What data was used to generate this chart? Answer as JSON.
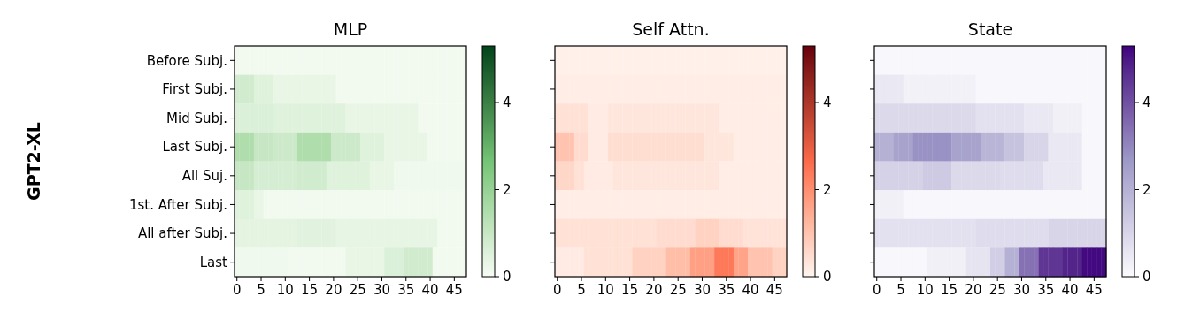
{
  "chart_data": [
    {
      "type": "heatmap",
      "title": "MLP",
      "ylabel": "GPT2-XL",
      "colors": [
        "#f7fcf5",
        "#74c476",
        "#00441b"
      ],
      "clim": [
        0,
        5.3
      ],
      "cticks": [
        0,
        2,
        4
      ],
      "categories": [
        "0",
        null,
        null,
        null,
        null,
        "5",
        null,
        null,
        null,
        null,
        "10",
        null,
        null,
        null,
        null,
        "15",
        null,
        null,
        null,
        null,
        "20",
        null,
        null,
        null,
        null,
        "25",
        null,
        null,
        null,
        null,
        "30",
        null,
        null,
        null,
        null,
        "35",
        null,
        null,
        null,
        null,
        "40",
        null,
        null,
        null,
        null,
        "45",
        null,
        null
      ],
      "y_categories": [
        "Before Subj.",
        "First Subj.",
        "Mid Subj.",
        "Last Subj.",
        "All Suj.",
        "1st. After Subj.",
        "All after Subj.",
        "Last"
      ],
      "cells": [
        [
          0.1,
          0.1,
          0.1,
          0.1,
          0.1,
          0.1,
          0.1,
          0.1,
          0.1,
          0.1,
          0.1,
          0.1,
          0.1,
          0.1,
          0.1,
          0.1,
          0.1,
          0.1,
          0.1,
          0.1,
          0.1,
          0.1,
          0.1,
          0.1,
          0.1,
          0.1,
          0.1,
          0.1,
          0.1,
          0.1,
          0.1,
          0.1,
          0.1,
          0.1,
          0.1,
          0.1,
          0.1,
          0.1,
          0.1,
          0.1,
          0.1,
          0.1,
          0.1,
          0.1,
          0.1,
          0.1,
          0.1,
          0.1
        ],
        [
          0.8,
          0.8,
          0.8,
          0.8,
          0.5,
          0.5,
          0.5,
          0.5,
          0.3,
          0.3,
          0.3,
          0.3,
          0.3,
          0.3,
          0.3,
          0.3,
          0.3,
          0.3,
          0.3,
          0.3,
          0.3,
          0.1,
          0.1,
          0.1,
          0.1,
          0.1,
          0.1,
          0.1,
          0.1,
          0.1,
          0.1,
          0.1,
          0.1,
          0.1,
          0.1,
          0.1,
          0.1,
          0.1,
          0.1,
          0.1,
          0.1,
          0.1,
          0.1,
          0.1,
          0.1,
          0.1,
          0.1,
          0.1
        ],
        [
          0.6,
          0.6,
          0.6,
          0.6,
          0.6,
          0.6,
          0.6,
          0.6,
          0.5,
          0.5,
          0.5,
          0.5,
          0.5,
          0.5,
          0.5,
          0.5,
          0.5,
          0.5,
          0.5,
          0.5,
          0.5,
          0.5,
          0.5,
          0.3,
          0.3,
          0.3,
          0.3,
          0.3,
          0.3,
          0.3,
          0.3,
          0.3,
          0.3,
          0.3,
          0.3,
          0.3,
          0.3,
          0.3,
          0.1,
          0.1,
          0.1,
          0.1,
          0.1,
          0.1,
          0.1,
          0.1,
          0.1,
          0.1
        ],
        [
          1.5,
          1.5,
          1.5,
          1.5,
          1.0,
          1.0,
          1.0,
          1.0,
          0.9,
          0.9,
          0.9,
          0.9,
          0.9,
          1.5,
          1.5,
          1.5,
          1.5,
          1.5,
          1.5,
          1.5,
          0.9,
          0.9,
          0.9,
          0.9,
          0.9,
          0.9,
          0.5,
          0.5,
          0.5,
          0.5,
          0.5,
          0.3,
          0.3,
          0.3,
          0.3,
          0.3,
          0.3,
          0.3,
          0.3,
          0.3,
          0.1,
          0.1,
          0.1,
          0.1,
          0.1,
          0.1,
          0.1,
          0.1
        ],
        [
          1.0,
          1.0,
          1.0,
          1.0,
          0.7,
          0.7,
          0.7,
          0.7,
          0.7,
          0.7,
          0.7,
          0.7,
          0.7,
          0.8,
          0.8,
          0.8,
          0.8,
          0.8,
          0.8,
          0.5,
          0.5,
          0.5,
          0.5,
          0.5,
          0.5,
          0.5,
          0.5,
          0.5,
          0.3,
          0.3,
          0.3,
          0.3,
          0.3,
          0.15,
          0.15,
          0.15,
          0.15,
          0.15,
          0.15,
          0.15,
          0.15,
          0.15,
          0.15,
          0.15,
          0.15,
          0.15,
          0.15,
          0.15
        ],
        [
          0.5,
          0.5,
          0.5,
          0.5,
          0.3,
          0.3,
          0.1,
          0.1,
          0.1,
          0.1,
          0.1,
          0.1,
          0.1,
          0.1,
          0.1,
          0.1,
          0.1,
          0.1,
          0.1,
          0.1,
          0.1,
          0.1,
          0.1,
          0.1,
          0.1,
          0.1,
          0.1,
          0.1,
          0.1,
          0.1,
          0.1,
          0.1,
          0.1,
          0.1,
          0.1,
          0.1,
          0.1,
          0.1,
          0.1,
          0.1,
          0.1,
          0.1,
          0.1,
          0.1,
          0.1,
          0.1,
          0.1,
          0.1
        ],
        [
          0.4,
          0.4,
          0.4,
          0.4,
          0.4,
          0.4,
          0.4,
          0.4,
          0.4,
          0.4,
          0.4,
          0.4,
          0.4,
          0.45,
          0.45,
          0.45,
          0.45,
          0.45,
          0.45,
          0.45,
          0.45,
          0.35,
          0.35,
          0.35,
          0.35,
          0.35,
          0.35,
          0.35,
          0.35,
          0.35,
          0.35,
          0.35,
          0.35,
          0.35,
          0.35,
          0.35,
          0.35,
          0.35,
          0.35,
          0.35,
          0.35,
          0.35,
          0.1,
          0.1,
          0.1,
          0.1,
          0.1,
          0.1
        ],
        [
          0.15,
          0.15,
          0.15,
          0.15,
          0.15,
          0.15,
          0.15,
          0.15,
          0.15,
          0.15,
          0.15,
          0.1,
          0.1,
          0.1,
          0.1,
          0.1,
          0.1,
          0.1,
          0.1,
          0.1,
          0.1,
          0.1,
          0.1,
          0.3,
          0.3,
          0.3,
          0.3,
          0.3,
          0.3,
          0.3,
          0.3,
          0.6,
          0.6,
          0.6,
          0.6,
          0.8,
          0.8,
          0.8,
          0.8,
          0.8,
          0.8,
          0.1,
          0.1,
          0.1,
          0.1,
          0.1,
          0.1,
          0.1
        ]
      ]
    },
    {
      "type": "heatmap",
      "title": "Self Attn.",
      "tick_labels": "x",
      "y_categories": [
        null,
        null,
        null,
        null,
        null,
        null,
        null,
        null
      ],
      "colors": [
        "#fff5f0",
        "#fb6a4a",
        "#67000d"
      ],
      "clim": [
        0,
        5.3
      ],
      "cticks": [
        0,
        2,
        4
      ],
      "categories": [
        "0",
        null,
        null,
        null,
        null,
        "5",
        null,
        null,
        null,
        null,
        "10",
        null,
        null,
        null,
        null,
        "15",
        null,
        null,
        null,
        null,
        "20",
        null,
        null,
        null,
        null,
        "25",
        null,
        null,
        null,
        null,
        "30",
        null,
        null,
        null,
        null,
        "35",
        null,
        null,
        null,
        null,
        "40",
        null,
        null,
        null,
        null,
        "45",
        null,
        null
      ],
      "cells": [
        [
          0.1,
          0.1,
          0.1,
          0.1,
          0.1,
          0.1,
          0.1,
          0.1,
          0.1,
          0.1,
          0.1,
          0.1,
          0.1,
          0.1,
          0.1,
          0.1,
          0.1,
          0.1,
          0.1,
          0.1,
          0.1,
          0.1,
          0.1,
          0.1,
          0.1,
          0.1,
          0.1,
          0.1,
          0.1,
          0.1,
          0.1,
          0.1,
          0.1,
          0.1,
          0.1,
          0.1,
          0.1,
          0.1,
          0.1,
          0.1,
          0.1,
          0.1,
          0.1,
          0.1,
          0.1,
          0.1,
          0.1,
          0.1
        ],
        [
          0.15,
          0.15,
          0.15,
          0.15,
          0.15,
          0.15,
          0.15,
          0.15,
          0.15,
          0.15,
          0.15,
          0.15,
          0.15,
          0.15,
          0.15,
          0.15,
          0.15,
          0.15,
          0.15,
          0.15,
          0.15,
          0.15,
          0.15,
          0.15,
          0.15,
          0.15,
          0.15,
          0.15,
          0.15,
          0.15,
          0.15,
          0.15,
          0.15,
          0.15,
          0.15,
          0.15,
          0.15,
          0.15,
          0.15,
          0.15,
          0.15,
          0.15,
          0.15,
          0.15,
          0.15,
          0.15,
          0.15,
          0.15
        ],
        [
          0.4,
          0.4,
          0.4,
          0.4,
          0.4,
          0.4,
          0.4,
          0.2,
          0.2,
          0.2,
          0.2,
          0.3,
          0.3,
          0.3,
          0.3,
          0.3,
          0.3,
          0.3,
          0.3,
          0.3,
          0.3,
          0.3,
          0.3,
          0.3,
          0.3,
          0.3,
          0.3,
          0.3,
          0.3,
          0.3,
          0.3,
          0.3,
          0.3,
          0.3,
          0.15,
          0.15,
          0.15,
          0.15,
          0.15,
          0.15,
          0.15,
          0.15,
          0.15,
          0.15,
          0.15,
          0.15,
          0.15,
          0.15
        ],
        [
          1.0,
          1.0,
          1.0,
          1.0,
          0.5,
          0.5,
          0.5,
          0.2,
          0.2,
          0.2,
          0.2,
          0.45,
          0.45,
          0.45,
          0.45,
          0.45,
          0.45,
          0.45,
          0.45,
          0.45,
          0.45,
          0.45,
          0.45,
          0.45,
          0.45,
          0.45,
          0.45,
          0.45,
          0.45,
          0.45,
          0.45,
          0.3,
          0.3,
          0.3,
          0.3,
          0.3,
          0.3,
          0.15,
          0.15,
          0.15,
          0.15,
          0.15,
          0.15,
          0.15,
          0.15,
          0.15,
          0.15,
          0.15
        ],
        [
          0.6,
          0.6,
          0.6,
          0.6,
          0.4,
          0.4,
          0.2,
          0.2,
          0.2,
          0.2,
          0.2,
          0.2,
          0.3,
          0.3,
          0.3,
          0.3,
          0.3,
          0.3,
          0.3,
          0.3,
          0.3,
          0.3,
          0.3,
          0.3,
          0.3,
          0.3,
          0.3,
          0.3,
          0.3,
          0.3,
          0.3,
          0.3,
          0.3,
          0.3,
          0.15,
          0.15,
          0.15,
          0.15,
          0.15,
          0.15,
          0.15,
          0.15,
          0.15,
          0.15,
          0.15,
          0.15,
          0.15,
          0.15
        ],
        [
          0.15,
          0.15,
          0.15,
          0.15,
          0.15,
          0.15,
          0.15,
          0.15,
          0.15,
          0.15,
          0.15,
          0.15,
          0.15,
          0.15,
          0.15,
          0.15,
          0.15,
          0.15,
          0.15,
          0.15,
          0.15,
          0.15,
          0.15,
          0.15,
          0.15,
          0.15,
          0.15,
          0.15,
          0.15,
          0.15,
          0.15,
          0.15,
          0.15,
          0.15,
          0.15,
          0.15,
          0.15,
          0.15,
          0.15,
          0.15,
          0.15,
          0.15,
          0.15,
          0.15,
          0.15,
          0.15,
          0.15,
          0.15
        ],
        [
          0.4,
          0.4,
          0.4,
          0.4,
          0.4,
          0.4,
          0.4,
          0.4,
          0.4,
          0.4,
          0.4,
          0.4,
          0.4,
          0.4,
          0.4,
          0.4,
          0.4,
          0.4,
          0.4,
          0.4,
          0.4,
          0.5,
          0.5,
          0.5,
          0.5,
          0.5,
          0.5,
          0.5,
          0.5,
          0.7,
          0.7,
          0.7,
          0.7,
          0.7,
          0.5,
          0.5,
          0.5,
          0.5,
          0.5,
          0.35,
          0.35,
          0.35,
          0.35,
          0.35,
          0.35,
          0.35,
          0.35,
          0.35
        ],
        [
          0.2,
          0.2,
          0.2,
          0.2,
          0.2,
          0.2,
          0.4,
          0.4,
          0.4,
          0.4,
          0.4,
          0.4,
          0.4,
          0.4,
          0.4,
          0.4,
          0.7,
          0.7,
          0.7,
          0.7,
          0.7,
          0.7,
          0.7,
          1.1,
          1.1,
          1.1,
          1.1,
          1.1,
          1.7,
          1.7,
          1.7,
          1.7,
          1.7,
          2.4,
          2.4,
          2.4,
          2.4,
          1.6,
          1.6,
          1.6,
          1.0,
          1.0,
          1.0,
          1.0,
          1.0,
          0.7,
          0.7,
          0.7
        ]
      ]
    },
    {
      "type": "heatmap",
      "title": "State",
      "tick_labels": "x",
      "y_categories": [
        null,
        null,
        null,
        null,
        null,
        null,
        null,
        null
      ],
      "colors": [
        "#fcfbfd",
        "#9e9ac8",
        "#3f007d"
      ],
      "clim": [
        0,
        5.3
      ],
      "cticks": [
        0,
        2,
        4
      ],
      "categories": [
        "0",
        null,
        null,
        null,
        null,
        "5",
        null,
        null,
        null,
        null,
        "10",
        null,
        null,
        null,
        null,
        "15",
        null,
        null,
        null,
        null,
        "20",
        null,
        null,
        null,
        null,
        "25",
        null,
        null,
        null,
        null,
        "30",
        null,
        null,
        null,
        null,
        "35",
        null,
        null,
        null,
        null,
        "40",
        null,
        null,
        null,
        null,
        "45",
        null,
        null
      ],
      "cells": [
        [
          0.1,
          0.1,
          0.1,
          0.1,
          0.1,
          0.1,
          0.1,
          0.1,
          0.1,
          0.1,
          0.1,
          0.1,
          0.1,
          0.1,
          0.1,
          0.1,
          0.1,
          0.1,
          0.1,
          0.1,
          0.1,
          0.1,
          0.1,
          0.1,
          0.1,
          0.1,
          0.1,
          0.1,
          0.1,
          0.1,
          0.1,
          0.1,
          0.1,
          0.1,
          0.1,
          0.1,
          0.1,
          0.1,
          0.1,
          0.1,
          0.1,
          0.1,
          0.1,
          0.1,
          0.1,
          0.1,
          0.1,
          0.1
        ],
        [
          0.5,
          0.5,
          0.5,
          0.5,
          0.5,
          0.5,
          0.25,
          0.25,
          0.25,
          0.25,
          0.25,
          0.25,
          0.25,
          0.25,
          0.25,
          0.25,
          0.25,
          0.25,
          0.25,
          0.25,
          0.25,
          0.1,
          0.1,
          0.1,
          0.1,
          0.1,
          0.1,
          0.1,
          0.1,
          0.1,
          0.1,
          0.1,
          0.1,
          0.1,
          0.1,
          0.1,
          0.1,
          0.1,
          0.1,
          0.1,
          0.1,
          0.1,
          0.1,
          0.1,
          0.1,
          0.1,
          0.1,
          0.1
        ],
        [
          0.9,
          0.9,
          0.9,
          0.9,
          0.9,
          0.9,
          0.9,
          0.9,
          0.9,
          0.9,
          0.9,
          0.9,
          0.9,
          0.9,
          0.9,
          0.9,
          0.9,
          0.9,
          0.9,
          0.9,
          0.9,
          0.7,
          0.7,
          0.7,
          0.7,
          0.7,
          0.7,
          0.7,
          0.7,
          0.7,
          0.7,
          0.5,
          0.5,
          0.5,
          0.5,
          0.5,
          0.5,
          0.3,
          0.3,
          0.3,
          0.3,
          0.3,
          0.3,
          0.1,
          0.1,
          0.1,
          0.1,
          0.1
        ],
        [
          2.0,
          2.0,
          2.0,
          2.0,
          2.4,
          2.4,
          2.4,
          2.4,
          2.8,
          2.8,
          2.8,
          2.8,
          2.8,
          2.8,
          2.8,
          2.8,
          2.4,
          2.4,
          2.4,
          2.4,
          2.4,
          2.4,
          1.9,
          1.9,
          1.9,
          1.9,
          1.9,
          1.5,
          1.5,
          1.5,
          1.5,
          1.0,
          1.0,
          1.0,
          1.0,
          1.0,
          0.5,
          0.5,
          0.5,
          0.5,
          0.5,
          0.5,
          0.5,
          0.1,
          0.1,
          0.1,
          0.1,
          0.1
        ],
        [
          1.1,
          1.1,
          1.1,
          1.1,
          1.1,
          1.1,
          1.1,
          1.1,
          1.1,
          1.1,
          1.3,
          1.3,
          1.3,
          1.3,
          1.3,
          1.3,
          0.9,
          0.9,
          0.9,
          0.9,
          0.9,
          0.9,
          0.9,
          0.9,
          0.9,
          0.9,
          0.8,
          0.8,
          0.8,
          0.8,
          0.8,
          0.8,
          0.8,
          0.8,
          0.8,
          0.5,
          0.5,
          0.5,
          0.5,
          0.5,
          0.5,
          0.5,
          0.5,
          0.1,
          0.1,
          0.1,
          0.1,
          0.1
        ],
        [
          0.3,
          0.3,
          0.3,
          0.3,
          0.3,
          0.3,
          0.1,
          0.1,
          0.1,
          0.1,
          0.1,
          0.1,
          0.1,
          0.1,
          0.1,
          0.1,
          0.1,
          0.1,
          0.1,
          0.1,
          0.1,
          0.1,
          0.1,
          0.1,
          0.1,
          0.1,
          0.1,
          0.1,
          0.1,
          0.1,
          0.1,
          0.1,
          0.1,
          0.1,
          0.1,
          0.1,
          0.1,
          0.1,
          0.1,
          0.1,
          0.1,
          0.1,
          0.1,
          0.1,
          0.1,
          0.1,
          0.1,
          0.1
        ],
        [
          0.7,
          0.7,
          0.7,
          0.7,
          0.7,
          0.7,
          0.7,
          0.7,
          0.7,
          0.7,
          0.7,
          0.7,
          0.7,
          0.7,
          0.7,
          0.7,
          0.7,
          0.7,
          0.7,
          0.7,
          0.7,
          0.8,
          0.8,
          0.8,
          0.8,
          0.8,
          0.8,
          0.8,
          0.8,
          0.8,
          0.8,
          0.8,
          0.8,
          0.8,
          0.8,
          0.8,
          1.0,
          1.0,
          1.0,
          1.0,
          1.0,
          1.0,
          1.0,
          1.0,
          1.0,
          1.0,
          1.0,
          1.0
        ],
        [
          0.1,
          0.1,
          0.1,
          0.1,
          0.1,
          0.1,
          0.1,
          0.1,
          0.1,
          0.1,
          0.1,
          0.3,
          0.3,
          0.3,
          0.3,
          0.3,
          0.3,
          0.3,
          0.3,
          0.6,
          0.6,
          0.6,
          0.6,
          0.6,
          1.2,
          1.2,
          1.2,
          2.0,
          2.0,
          2.0,
          3.4,
          3.4,
          3.4,
          3.4,
          4.5,
          4.5,
          4.5,
          4.5,
          4.5,
          4.8,
          4.8,
          4.8,
          4.8,
          5.2,
          5.2,
          5.2,
          5.2,
          5.2
        ]
      ]
    }
  ]
}
